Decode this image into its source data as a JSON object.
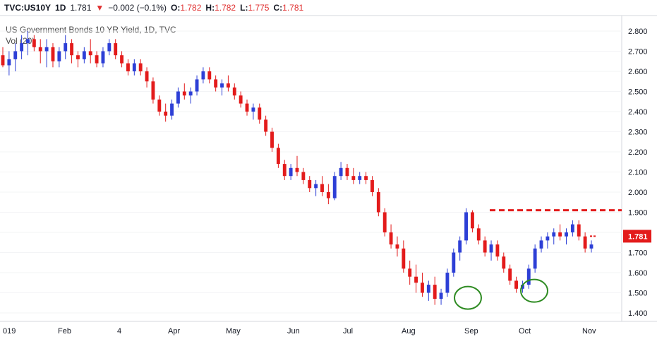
{
  "header": {
    "symbol": "TVC:US10Y",
    "interval": "1D",
    "last": "1.781",
    "change": "−0.002 (−0.1%)",
    "o_label": "O:",
    "o_value": "1.782",
    "h_label": "H:",
    "h_value": "1.782",
    "l_label": "L:",
    "l_value": "1.775",
    "c_label": "C:",
    "c_value": "1.781"
  },
  "chart_data": {
    "type": "candlestick",
    "title": "US Government Bonds 10 YR Yield, 1D, TVC",
    "indicator": "Vol (20)",
    "ylim": [
      1.35,
      2.85
    ],
    "y_ticks": [
      "1.400",
      "1.500",
      "1.600",
      "1.700",
      "1.800",
      "1.900",
      "2.000",
      "2.100",
      "2.200",
      "2.300",
      "2.400",
      "2.500",
      "2.600",
      "2.700",
      "2.800"
    ],
    "x_ticks": [
      "019",
      "Feb",
      "4",
      "Apr",
      "May",
      "Jun",
      "Jul",
      "Aug",
      "Sep",
      "Oct",
      "Nov"
    ],
    "last_price_label": "1.781",
    "resistance_level": 1.91,
    "colors": {
      "up": "#2d3fd6",
      "down": "#e31b1b",
      "resistance": "#e31b1b",
      "circle": "#2e8b22",
      "price_tag": "#e31b1b"
    },
    "annotations": [
      {
        "type": "horizontal_dashed_line",
        "level": 1.91
      },
      {
        "type": "ellipse",
        "month": "Sep",
        "level": 1.475
      },
      {
        "type": "ellipse",
        "month": "Oct",
        "level": 1.51
      }
    ],
    "ohlc_approx": [
      [
        2.68,
        2.72,
        2.62,
        2.63
      ],
      [
        2.63,
        2.7,
        2.58,
        2.66
      ],
      [
        2.66,
        2.74,
        2.6,
        2.7
      ],
      [
        2.7,
        2.78,
        2.66,
        2.74
      ],
      [
        2.74,
        2.8,
        2.68,
        2.76
      ],
      [
        2.76,
        2.78,
        2.7,
        2.72
      ],
      [
        2.72,
        2.76,
        2.64,
        2.7
      ],
      [
        2.7,
        2.76,
        2.62,
        2.72
      ],
      [
        2.72,
        2.74,
        2.62,
        2.65
      ],
      [
        2.65,
        2.72,
        2.62,
        2.7
      ],
      [
        2.7,
        2.78,
        2.66,
        2.74
      ],
      [
        2.74,
        2.76,
        2.64,
        2.68
      ],
      [
        2.68,
        2.7,
        2.62,
        2.66
      ],
      [
        2.66,
        2.72,
        2.64,
        2.7
      ],
      [
        2.7,
        2.76,
        2.64,
        2.68
      ],
      [
        2.68,
        2.7,
        2.62,
        2.64
      ],
      [
        2.64,
        2.72,
        2.62,
        2.7
      ],
      [
        2.7,
        2.76,
        2.68,
        2.74
      ],
      [
        2.74,
        2.76,
        2.66,
        2.68
      ],
      [
        2.68,
        2.7,
        2.62,
        2.64
      ],
      [
        2.64,
        2.66,
        2.58,
        2.6
      ],
      [
        2.6,
        2.66,
        2.58,
        2.64
      ],
      [
        2.64,
        2.66,
        2.58,
        2.6
      ],
      [
        2.6,
        2.62,
        2.52,
        2.55
      ],
      [
        2.55,
        2.57,
        2.44,
        2.46
      ],
      [
        2.46,
        2.48,
        2.38,
        2.4
      ],
      [
        2.4,
        2.44,
        2.35,
        2.38
      ],
      [
        2.38,
        2.46,
        2.36,
        2.44
      ],
      [
        2.44,
        2.52,
        2.42,
        2.5
      ],
      [
        2.5,
        2.54,
        2.46,
        2.48
      ],
      [
        2.48,
        2.52,
        2.44,
        2.5
      ],
      [
        2.5,
        2.58,
        2.48,
        2.56
      ],
      [
        2.56,
        2.62,
        2.54,
        2.6
      ],
      [
        2.6,
        2.62,
        2.54,
        2.56
      ],
      [
        2.56,
        2.58,
        2.5,
        2.52
      ],
      [
        2.52,
        2.56,
        2.48,
        2.54
      ],
      [
        2.54,
        2.58,
        2.5,
        2.52
      ],
      [
        2.52,
        2.54,
        2.46,
        2.48
      ],
      [
        2.48,
        2.5,
        2.42,
        2.44
      ],
      [
        2.44,
        2.46,
        2.38,
        2.4
      ],
      [
        2.4,
        2.44,
        2.36,
        2.42
      ],
      [
        2.42,
        2.44,
        2.34,
        2.36
      ],
      [
        2.36,
        2.38,
        2.28,
        2.3
      ],
      [
        2.3,
        2.32,
        2.2,
        2.22
      ],
      [
        2.22,
        2.24,
        2.12,
        2.14
      ],
      [
        2.14,
        2.16,
        2.06,
        2.08
      ],
      [
        2.08,
        2.14,
        2.06,
        2.12
      ],
      [
        2.12,
        2.18,
        2.08,
        2.1
      ],
      [
        2.1,
        2.12,
        2.04,
        2.06
      ],
      [
        2.06,
        2.08,
        2.0,
        2.02
      ],
      [
        2.02,
        2.06,
        1.98,
        2.04
      ],
      [
        2.04,
        2.08,
        1.98,
        2.0
      ],
      [
        2.0,
        2.04,
        1.94,
        1.97
      ],
      [
        1.97,
        2.1,
        1.96,
        2.08
      ],
      [
        2.08,
        2.15,
        2.06,
        2.12
      ],
      [
        2.12,
        2.14,
        2.06,
        2.08
      ],
      [
        2.08,
        2.12,
        2.04,
        2.06
      ],
      [
        2.06,
        2.1,
        2.04,
        2.08
      ],
      [
        2.08,
        2.1,
        2.04,
        2.06
      ],
      [
        2.06,
        2.08,
        1.98,
        2.0
      ],
      [
        2.0,
        2.02,
        1.88,
        1.9
      ],
      [
        1.9,
        1.92,
        1.78,
        1.8
      ],
      [
        1.8,
        1.84,
        1.72,
        1.74
      ],
      [
        1.74,
        1.78,
        1.68,
        1.72
      ],
      [
        1.72,
        1.76,
        1.6,
        1.62
      ],
      [
        1.62,
        1.66,
        1.54,
        1.58
      ],
      [
        1.58,
        1.64,
        1.5,
        1.55
      ],
      [
        1.55,
        1.6,
        1.48,
        1.5
      ],
      [
        1.5,
        1.56,
        1.46,
        1.54
      ],
      [
        1.54,
        1.58,
        1.44,
        1.47
      ],
      [
        1.47,
        1.52,
        1.44,
        1.5
      ],
      [
        1.5,
        1.62,
        1.48,
        1.6
      ],
      [
        1.6,
        1.72,
        1.58,
        1.7
      ],
      [
        1.7,
        1.78,
        1.66,
        1.76
      ],
      [
        1.76,
        1.92,
        1.74,
        1.9
      ],
      [
        1.9,
        1.91,
        1.8,
        1.82
      ],
      [
        1.82,
        1.84,
        1.74,
        1.76
      ],
      [
        1.76,
        1.78,
        1.68,
        1.7
      ],
      [
        1.7,
        1.76,
        1.66,
        1.74
      ],
      [
        1.74,
        1.76,
        1.66,
        1.68
      ],
      [
        1.68,
        1.7,
        1.6,
        1.62
      ],
      [
        1.62,
        1.64,
        1.54,
        1.56
      ],
      [
        1.56,
        1.58,
        1.5,
        1.52
      ],
      [
        1.52,
        1.56,
        1.5,
        1.54
      ],
      [
        1.54,
        1.64,
        1.52,
        1.62
      ],
      [
        1.62,
        1.74,
        1.6,
        1.72
      ],
      [
        1.72,
        1.78,
        1.7,
        1.76
      ],
      [
        1.76,
        1.8,
        1.72,
        1.78
      ],
      [
        1.78,
        1.82,
        1.74,
        1.8
      ],
      [
        1.8,
        1.84,
        1.76,
        1.78
      ],
      [
        1.78,
        1.82,
        1.74,
        1.8
      ],
      [
        1.8,
        1.86,
        1.78,
        1.84
      ],
      [
        1.84,
        1.86,
        1.76,
        1.78
      ],
      [
        1.78,
        1.8,
        1.7,
        1.72
      ],
      [
        1.72,
        1.76,
        1.7,
        1.74
      ]
    ]
  }
}
